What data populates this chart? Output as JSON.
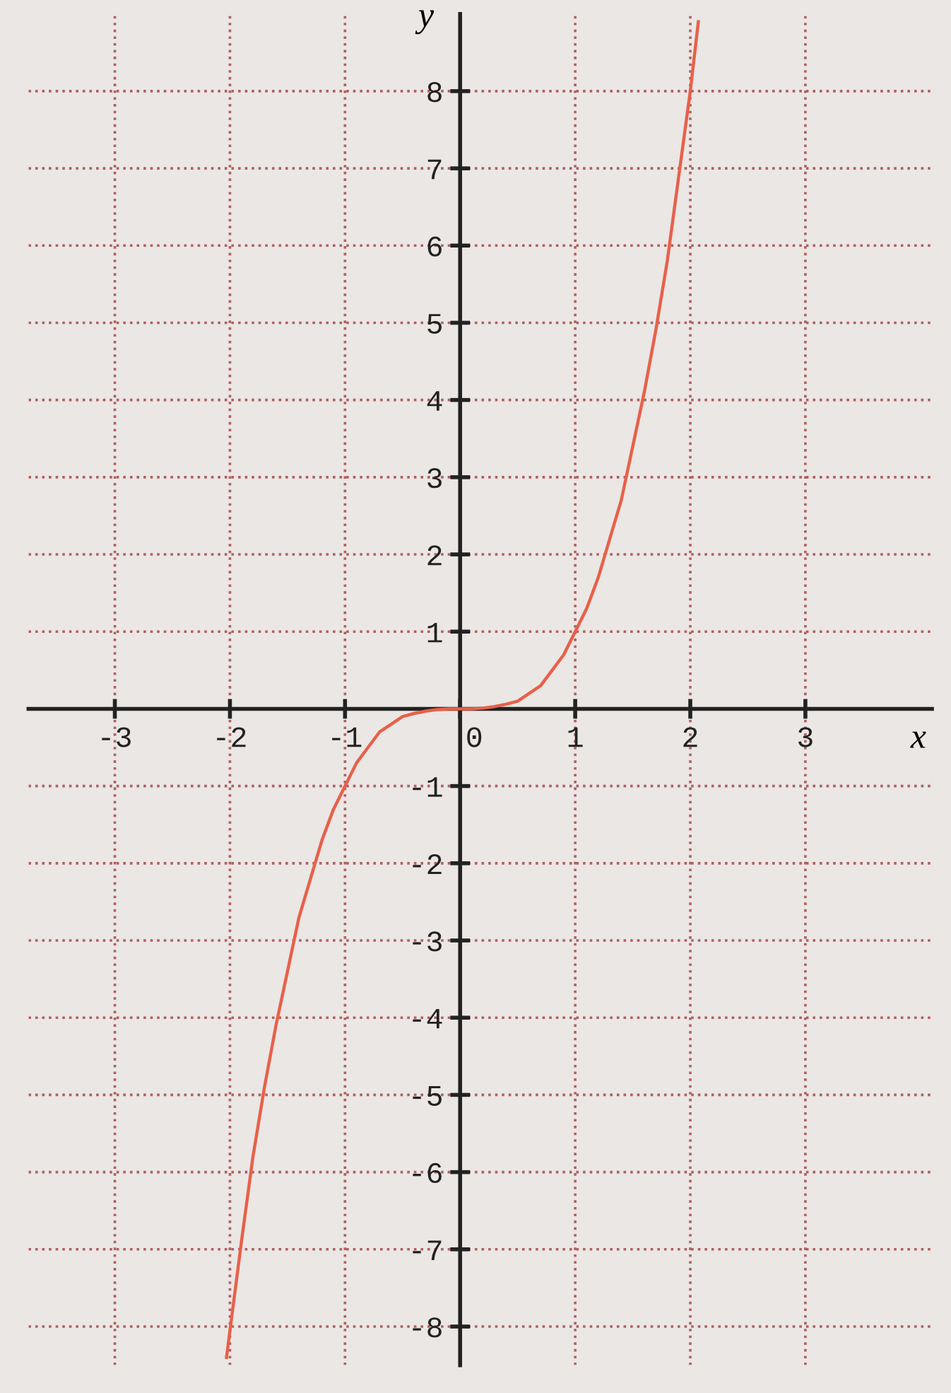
{
  "chart_data": {
    "type": "line",
    "xlabel": "x",
    "ylabel": "y",
    "x": [
      -2.03,
      -1.9,
      -1.8,
      -1.7,
      -1.6,
      -1.5,
      -1.4,
      -1.3,
      -1.2,
      -1.1,
      -1.0,
      -0.9,
      -0.8,
      -0.7,
      -0.6,
      -0.5,
      -0.4,
      -0.3,
      -0.2,
      -0.1,
      0,
      0.1,
      0.2,
      0.3,
      0.4,
      0.5,
      0.6,
      0.7,
      0.8,
      0.9,
      1.0,
      1.1,
      1.2,
      1.3,
      1.4,
      1.5,
      1.6,
      1.7,
      1.8,
      1.9,
      2.0,
      2.07
    ],
    "series": [
      {
        "color": "#e8604a",
        "values": [
          -8.4,
          -6.9,
          -5.8,
          -4.9,
          -4.1,
          -3.4,
          -2.7,
          -2.2,
          -1.7,
          -1.3,
          -1.0,
          -0.7,
          -0.5,
          -0.3,
          -0.2,
          -0.1,
          -0.06,
          -0.03,
          -0.01,
          0,
          0,
          0,
          0.01,
          0.03,
          0.06,
          0.1,
          0.2,
          0.3,
          0.5,
          0.7,
          1.0,
          1.3,
          1.7,
          2.2,
          2.7,
          3.4,
          4.1,
          4.9,
          5.8,
          6.9,
          8.0,
          8.9
        ]
      }
    ],
    "xlim": [
      -3.75,
      4.1
    ],
    "ylim": [
      -8.5,
      9
    ],
    "xticks": [
      -3,
      -2,
      -1,
      0,
      1,
      2,
      3
    ],
    "yticks": [
      -8,
      -7,
      -6,
      -5,
      -4,
      -3,
      -2,
      -1,
      1,
      2,
      3,
      4,
      5,
      6,
      7,
      8
    ],
    "grid": true,
    "marker": "none",
    "line_style": "solid"
  }
}
